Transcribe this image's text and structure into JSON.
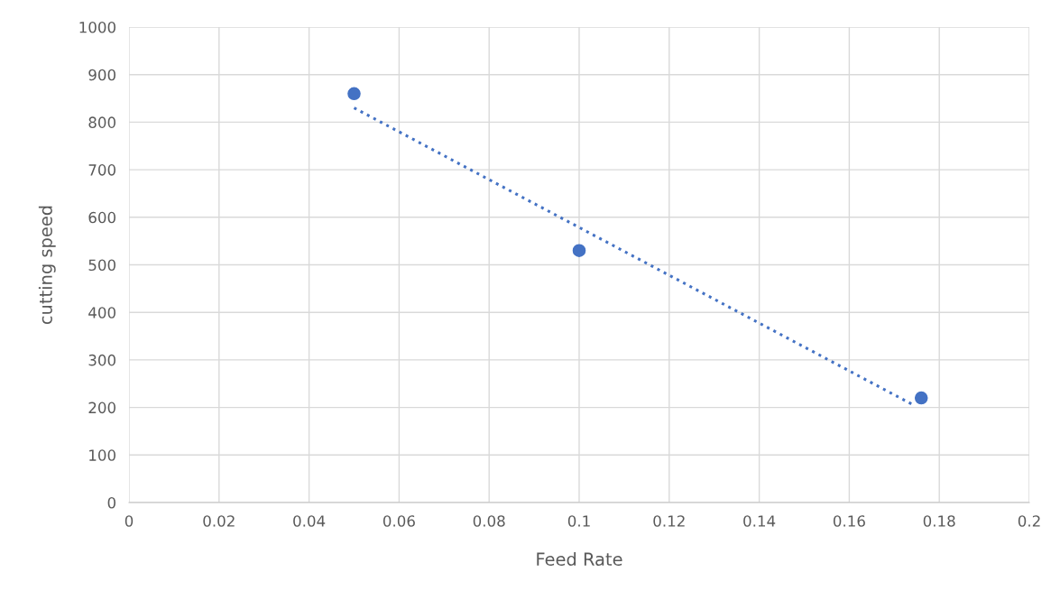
{
  "chart_data": {
    "type": "scatter",
    "xlabel": "Feed Rate",
    "ylabel": "cutting speed",
    "xlim": [
      0,
      0.2
    ],
    "ylim": [
      0,
      1000
    ],
    "xticks": [
      0,
      0.02,
      0.04,
      0.06,
      0.08,
      0.1,
      0.12,
      0.14,
      0.16,
      0.18,
      0.2
    ],
    "yticks": [
      0,
      100,
      200,
      300,
      400,
      500,
      600,
      700,
      800,
      900,
      1000
    ],
    "grid": true,
    "marker": "circle",
    "series": [
      {
        "color": "#4472c4",
        "x": [
          0.05,
          0.1,
          0.176
        ],
        "values": [
          860,
          530,
          220
        ]
      },
      {
        "type": "line",
        "color": "#4472c4",
        "line_style": "dotted",
        "marker": "none",
        "x": [
          0.05,
          0.1743
        ],
        "values": [
          830,
          205
        ]
      }
    ]
  }
}
